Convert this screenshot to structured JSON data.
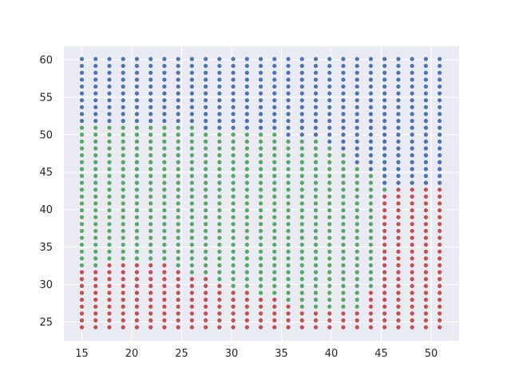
{
  "chart_data": {
    "type": "scatter",
    "title": "",
    "xlabel": "",
    "ylabel": "",
    "xlim": [
      13.2,
      52.8
    ],
    "ylim": [
      22.5,
      61.8
    ],
    "x_ticks": [
      15,
      20,
      25,
      30,
      35,
      40,
      45,
      50
    ],
    "y_ticks": [
      25,
      30,
      35,
      40,
      45,
      50,
      55,
      60
    ],
    "grid": true,
    "legend": "none",
    "background_color": "#eaeaf2",
    "grid_color": "#ffffff",
    "point_grid": {
      "x_min": 15.0,
      "x_max": 50.85,
      "x_count": 27,
      "y_min": 24.3,
      "y_max": 60.1,
      "y_count": 40
    },
    "series": [
      {
        "color": "#4c72b0",
        "region": "upper",
        "description_rule": "y > green upper boundary, and y > 42 for x >= 45.5",
        "boundary_y_by_x": [
          [
            15,
            51.5
          ],
          [
            20,
            51.5
          ],
          [
            26,
            51.5
          ],
          [
            27.5,
            50.8
          ],
          [
            30,
            50.8
          ],
          [
            34,
            50.8
          ],
          [
            35,
            50.0
          ],
          [
            38,
            49.5
          ],
          [
            39.5,
            48.5
          ],
          [
            41,
            47.5
          ],
          [
            42.5,
            46.2
          ],
          [
            44,
            44.5
          ],
          [
            45.5,
            42.8
          ],
          [
            51,
            42.8
          ]
        ]
      },
      {
        "color": "#55a868",
        "region": "middle",
        "description_rule": "between red upper boundary and blue boundary",
        "boundary_y_by_x": [
          [
            15,
            32.0
          ],
          [
            17,
            32.0
          ],
          [
            18,
            33.0
          ],
          [
            23.5,
            33.0
          ],
          [
            24.5,
            32.0
          ],
          [
            26,
            31.2
          ],
          [
            27.5,
            31.2
          ],
          [
            28.5,
            30.5
          ],
          [
            30,
            29.5
          ],
          [
            34,
            28.2
          ],
          [
            36,
            27.0
          ],
          [
            37,
            26.5
          ],
          [
            38.5,
            26.2
          ],
          [
            42,
            26.2
          ],
          [
            43,
            27.0
          ],
          [
            44.5,
            30.0
          ],
          [
            45,
            42.0
          ]
        ]
      },
      {
        "color": "#c44e52",
        "region": "lower",
        "description_rule": "below green lower boundary; also x >= 45.5 and y <= 42"
      }
    ]
  }
}
